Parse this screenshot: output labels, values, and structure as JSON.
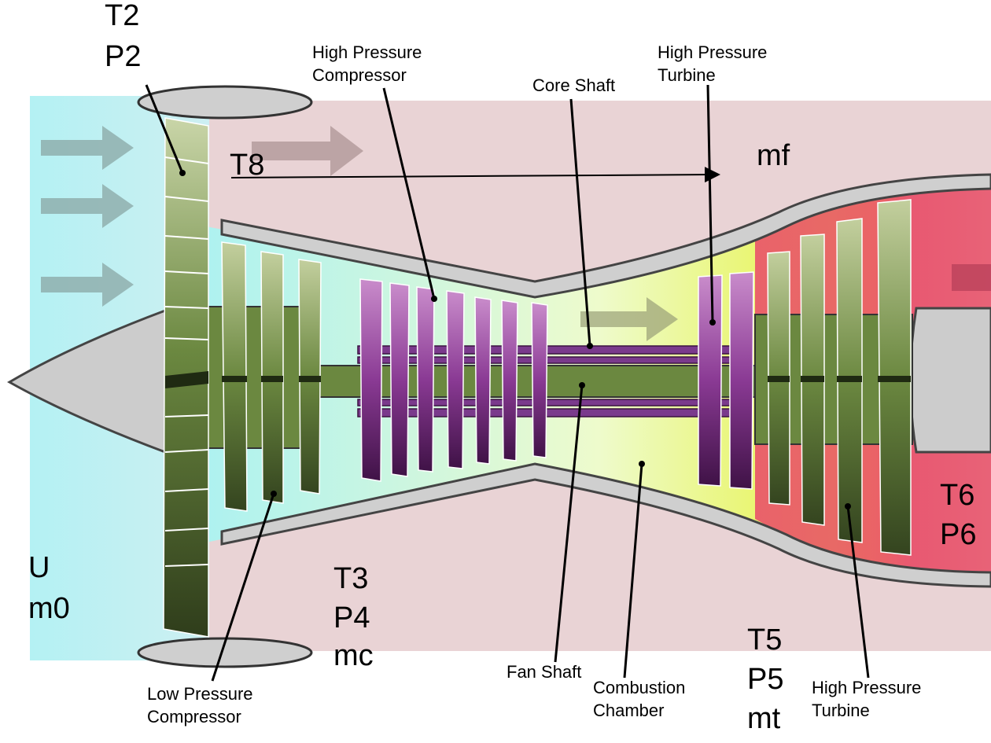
{
  "labels": {
    "hpc_line1": "High Pressure",
    "hpc_line2": "Compressor",
    "hpt_top_line1": "High Pressure",
    "hpt_top_line2": "Turbine",
    "core_shaft": "Core Shaft",
    "fan_shaft": "Fan Shaft",
    "combustion_line1": "Combustion",
    "combustion_line2": "Chamber",
    "lpc_line1": "Low Pressure",
    "lpc_line2": "Compressor",
    "hpt_bottom_line1": "High Pressure",
    "hpt_bottom_line2": "Turbine"
  },
  "stations": {
    "t2": "T2",
    "p2": "P2",
    "t8": "T8",
    "mf": "mf",
    "u": "U",
    "m0": "m0",
    "t3": "T3",
    "p4": "P4",
    "mc": "mc",
    "t5": "T5",
    "p5": "P5",
    "mt": "mt",
    "t6": "T6",
    "p6": "P6"
  },
  "colors": {
    "intake": "#bff3f5",
    "bypass": "#e8d2d4",
    "casing": "#cccccc",
    "fan_blade_light": "#c9d5a8",
    "fan_blade_dark": "#3a4a22",
    "lp_blade": "#6b8840",
    "hp_blade_light": "#c78bc9",
    "hp_blade_dark": "#4a1650",
    "shaft_core": "#7a3a8c",
    "shaft_fan": "#6b8840",
    "combustion_yellow": "#eef24a",
    "turbine_red": "#e8546e"
  }
}
